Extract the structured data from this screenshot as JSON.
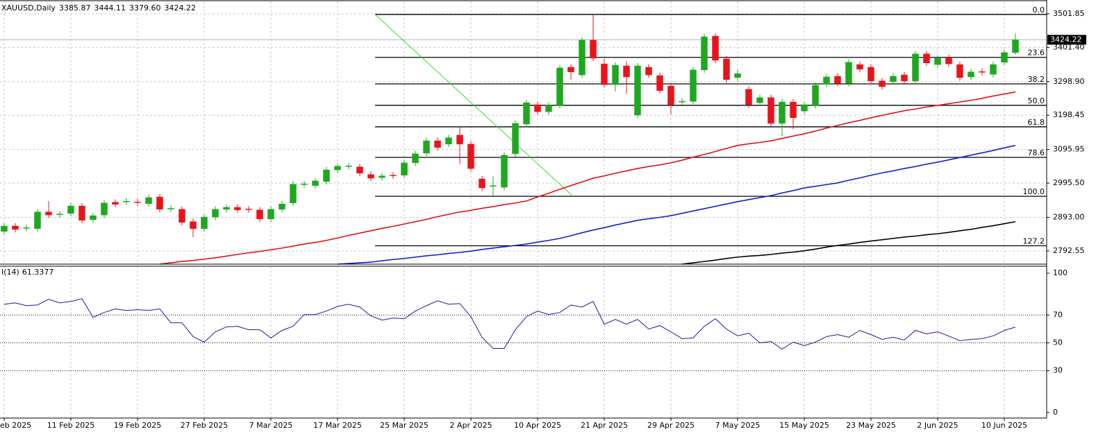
{
  "chart_data": {
    "type": "candlestick",
    "title": "XAUUSD,Daily",
    "ohlc_labels": [
      "3385.87",
      "3444.11",
      "3379.60",
      "3424.22"
    ],
    "up_color": "#1fa81f",
    "down_color": "#e8141c",
    "categories": [
      "eb 2025",
      null,
      null,
      null,
      null,
      null,
      "11 Feb 2025",
      null,
      null,
      null,
      null,
      null,
      "19 Feb 2025",
      null,
      null,
      null,
      null,
      null,
      "27 Feb 2025",
      null,
      null,
      null,
      null,
      null,
      "7 Mar 2025",
      null,
      null,
      null,
      null,
      null,
      "17 Mar 2025",
      null,
      null,
      null,
      null,
      null,
      "25 Mar 2025",
      null,
      null,
      null,
      null,
      null,
      "2 Apr 2025",
      null,
      null,
      null,
      null,
      null,
      "10 Apr 2025",
      null,
      null,
      null,
      null,
      null,
      "21 Apr 2025",
      null,
      null,
      null,
      null,
      null,
      "29 Apr 2025",
      null,
      null,
      null,
      null,
      null,
      "7 May 2025",
      null,
      null,
      null,
      null,
      null,
      "15 May 2025",
      null,
      null,
      null,
      null,
      null,
      "23 May 2025",
      null,
      null,
      null,
      null,
      null,
      "2 Jun 2025",
      null,
      null,
      null,
      null,
      null,
      "10 Jun 2025",
      null
    ],
    "open": [
      2851,
      2867,
      2860,
      2859,
      2909,
      2901,
      2905,
      2927,
      2886,
      2900,
      2938,
      2939,
      2939,
      2934,
      2954,
      2918,
      2917,
      2880,
      2859,
      2894,
      2917,
      2923,
      2918,
      2915,
      2888,
      2917,
      2936,
      2991,
      2988,
      3000,
      3035,
      3045,
      3044,
      3021,
      3012,
      3019,
      3019,
      3056,
      3085,
      3122,
      3112,
      3139,
      3112,
      3008,
      2986,
      2983,
      3083,
      3172,
      3230,
      3209,
      3228,
      3342,
      3319,
      3423,
      3352,
      3290,
      3346,
      3199,
      3342,
      3317,
      3286,
      3238,
      3240,
      3334,
      3435,
      3367,
      3311,
      3276,
      3236,
      3251,
      3174,
      3238,
      3211,
      3228,
      3292,
      3315,
      3294,
      3350,
      3342,
      3301,
      3299,
      3319,
      3301,
      3382,
      3350,
      3371,
      3350,
      3313,
      3329,
      3321,
      3357,
      3385.87
    ],
    "high": [
      2876,
      2876,
      2871,
      2918,
      2942,
      2912,
      2936,
      2936,
      2907,
      2945,
      2947,
      2950,
      2948,
      2961,
      2963,
      2929,
      2926,
      2889,
      2903,
      2926,
      2932,
      2932,
      2927,
      2924,
      2926,
      2942,
      3001,
      3002,
      3011,
      3044,
      3055,
      3056,
      3053,
      3030,
      3026,
      3028,
      3065,
      3092,
      3131,
      3131,
      3140,
      3165,
      3121,
      3017,
      3016,
      3088,
      3183,
      3245,
      3239,
      3237,
      3349,
      3351,
      3432,
      3500,
      3368,
      3357,
      3360,
      3355,
      3351,
      3326,
      3295,
      3249,
      3343,
      3442,
      3444,
      3376,
      3335,
      3285,
      3260,
      3260,
      3247,
      3247,
      3239,
      3297,
      3322,
      3324,
      3366,
      3359,
      3351,
      3310,
      3324,
      3328,
      3391,
      3391,
      3378,
      3380,
      3359,
      3337,
      3338,
      3359,
      3395,
      3444.11
    ],
    "low": [
      2842,
      2848,
      2851,
      2850,
      2891,
      2892,
      2896,
      2875,
      2877,
      2891,
      2923,
      2930,
      2928,
      2925,
      2908,
      2909,
      2869,
      2834,
      2850,
      2885,
      2908,
      2906,
      2907,
      2879,
      2879,
      2908,
      2927,
      2982,
      2979,
      2991,
      3026,
      3036,
      3016,
      3001,
      3003,
      3008,
      3010,
      3047,
      3076,
      3093,
      3103,
      3052,
      3030,
      2972,
      2956,
      2974,
      3074,
      3163,
      3200,
      3200,
      3219,
      3305,
      3310,
      3360,
      3281,
      3270,
      3263,
      3190,
      3310,
      3263,
      3201,
      3229,
      3231,
      3325,
      3354,
      3296,
      3300,
      3221,
      3227,
      3165,
      3135,
      3156,
      3202,
      3219,
      3283,
      3285,
      3285,
      3327,
      3292,
      3275,
      3290,
      3292,
      3292,
      3346,
      3341,
      3343,
      3302,
      3304,
      3318,
      3312,
      3348,
      3379.6
    ],
    "close": [
      2867,
      2857,
      2862,
      2909,
      2900,
      2903,
      2927,
      2884,
      2898,
      2936,
      2932,
      2941,
      2937,
      2952,
      2917,
      2920,
      2878,
      2859,
      2894,
      2917,
      2923,
      2915,
      2916,
      2888,
      2917,
      2933,
      2992,
      2993,
      3002,
      3035,
      3046,
      3047,
      3025,
      3010,
      3017,
      3017,
      3056,
      3083,
      3122,
      3102,
      3131,
      3112,
      3039,
      2981,
      2988,
      3079,
      3174,
      3236,
      3209,
      3228,
      3340,
      3328,
      3423,
      3369,
      3290,
      3348,
      3313,
      3346,
      3319,
      3272,
      3230,
      3240,
      3334,
      3433,
      3363,
      3305,
      3323,
      3230,
      3251,
      3174,
      3238,
      3191,
      3230,
      3288,
      3313,
      3294,
      3357,
      3336,
      3301,
      3284,
      3315,
      3301,
      3382,
      3355,
      3369,
      3352,
      3311,
      3328,
      3327,
      3350,
      3386,
      3424.22
    ],
    "ma": [
      {
        "color": "#e01010",
        "values": [
          null,
          null,
          null,
          null,
          null,
          null,
          null,
          null,
          null,
          null,
          null,
          null,
          null,
          null,
          2753,
          2757,
          2761,
          2764,
          2768,
          2772,
          2777,
          2782,
          2787,
          2791,
          2796,
          2801,
          2807,
          2813,
          2818,
          2824,
          2831,
          2839,
          2846,
          2853,
          2860,
          2866,
          2873,
          2880,
          2887,
          2895,
          2902,
          2909,
          2914,
          2920,
          2925,
          2931,
          2936,
          2942,
          2954,
          2965,
          2977,
          2988,
          2999,
          3010,
          3017,
          3025,
          3032,
          3039,
          3045,
          3050,
          3056,
          3064,
          3073,
          3081,
          3090,
          3099,
          3108,
          3113,
          3117,
          3122,
          3129,
          3136,
          3143,
          3151,
          3160,
          3168,
          3176,
          3183,
          3191,
          3198,
          3205,
          3212,
          3217,
          3223,
          3228,
          3233,
          3238,
          3243,
          3249,
          3256,
          3262,
          3268
        ]
      },
      {
        "color": "#1020d0",
        "values": [
          null,
          null,
          null,
          null,
          null,
          null,
          null,
          null,
          null,
          null,
          null,
          null,
          null,
          null,
          null,
          null,
          null,
          null,
          null,
          null,
          null,
          null,
          null,
          null,
          null,
          null,
          null,
          null,
          null,
          null,
          2753,
          2755,
          2757,
          2759,
          2763,
          2767,
          2770,
          2774,
          2778,
          2781,
          2785,
          2788,
          2792,
          2797,
          2801,
          2805,
          2809,
          2813,
          2819,
          2824,
          2830,
          2838,
          2847,
          2855,
          2862,
          2870,
          2877,
          2884,
          2889,
          2893,
          2898,
          2905,
          2912,
          2919,
          2926,
          2933,
          2940,
          2946,
          2952,
          2958,
          2966,
          2973,
          2981,
          2986,
          2991,
          2996,
          3004,
          3011,
          3019,
          3026,
          3032,
          3039,
          3045,
          3052,
          3058,
          3065,
          3072,
          3079,
          3086,
          3093,
          3101,
          3108
        ]
      },
      {
        "color": "#000000",
        "values": [
          null,
          null,
          null,
          null,
          null,
          null,
          null,
          null,
          null,
          null,
          null,
          null,
          null,
          null,
          null,
          null,
          null,
          null,
          null,
          null,
          null,
          null,
          null,
          null,
          null,
          null,
          null,
          null,
          null,
          null,
          null,
          null,
          null,
          null,
          null,
          null,
          null,
          null,
          null,
          null,
          null,
          null,
          null,
          null,
          null,
          null,
          null,
          null,
          null,
          null,
          null,
          null,
          null,
          null,
          null,
          null,
          null,
          null,
          null,
          null,
          null,
          2753,
          2757,
          2761,
          2765,
          2770,
          2774,
          2777,
          2779,
          2782,
          2786,
          2789,
          2793,
          2798,
          2804,
          2809,
          2813,
          2818,
          2822,
          2826,
          2830,
          2834,
          2837,
          2841,
          2844,
          2848,
          2853,
          2857,
          2863,
          2868,
          2874,
          2880
        ]
      }
    ],
    "fib": {
      "color": "#000000",
      "levels": [
        {
          "label": "0.0",
          "value": 3500
        },
        {
          "label": "23.6",
          "value": 3371.6
        },
        {
          "label": "38.2",
          "value": 3292.2
        },
        {
          "label": "50.0",
          "value": 3228
        },
        {
          "label": "61.8",
          "value": 3163.8
        },
        {
          "label": "78.6",
          "value": 3072.4
        },
        {
          "label": "100.0",
          "value": 2956
        },
        {
          "label": "127.2",
          "value": 2808
        }
      ]
    },
    "trendline": {
      "color": "#33dd33",
      "values": [
        3500,
        2956
      ]
    },
    "ylim": [
      2753,
      3539
    ],
    "yticks": [
      3501.85,
      {
        "value": 3401.4,
        "label": "3401.40"
      },
      {
        "value": 3298.9,
        "label": "3298.90"
      },
      3198.45,
      3095.95,
      {
        "value": 2995.5,
        "label": "2995.50"
      },
      {
        "value": 2893,
        "label": "2893.00"
      },
      2792.55
    ],
    "grid": true,
    "rsi": {
      "type": "line",
      "name": "I(14)",
      "color": "#1a1a9a",
      "values": [
        77.7,
        78.7,
        76.7,
        77.2,
        81.2,
        78.7,
        79.7,
        81.7,
        68.3,
        71.8,
        74.3,
        73.3,
        73.8,
        73.3,
        74.3,
        64.4,
        64.4,
        54.5,
        50.5,
        57.9,
        61.4,
        61.9,
        59.4,
        59.4,
        53.5,
        58.9,
        61.9,
        70.3,
        70.3,
        72.8,
        76.2,
        77.7,
        75.7,
        69.3,
        66.3,
        67.8,
        67.3,
        72.8,
        76.7,
        80.2,
        77.7,
        78.2,
        68.8,
        54.0,
        46.0,
        46.0,
        59.4,
        68.8,
        72.8,
        70.3,
        71.8,
        77.2,
        75.7,
        79.7,
        63.4,
        66.8,
        63.4,
        66.8,
        59.9,
        62.4,
        57.9,
        53.0,
        53.5,
        61.9,
        67.3,
        59.9,
        55.0,
        56.9,
        50.0,
        51.0,
        45.5,
        50.5,
        48.0,
        50.5,
        54.5,
        55.9,
        54.0,
        58.9,
        55.9,
        52.5,
        54.0,
        52.0,
        58.9,
        56.4,
        57.9,
        54.9,
        51.5,
        52.5,
        53.0,
        55.0,
        58.9,
        61.3377
      ],
      "ylim": [
        -4,
        105
      ],
      "yticks": [
        100,
        70,
        50,
        30,
        0
      ],
      "levels": [
        70,
        50,
        30
      ]
    }
  }
}
